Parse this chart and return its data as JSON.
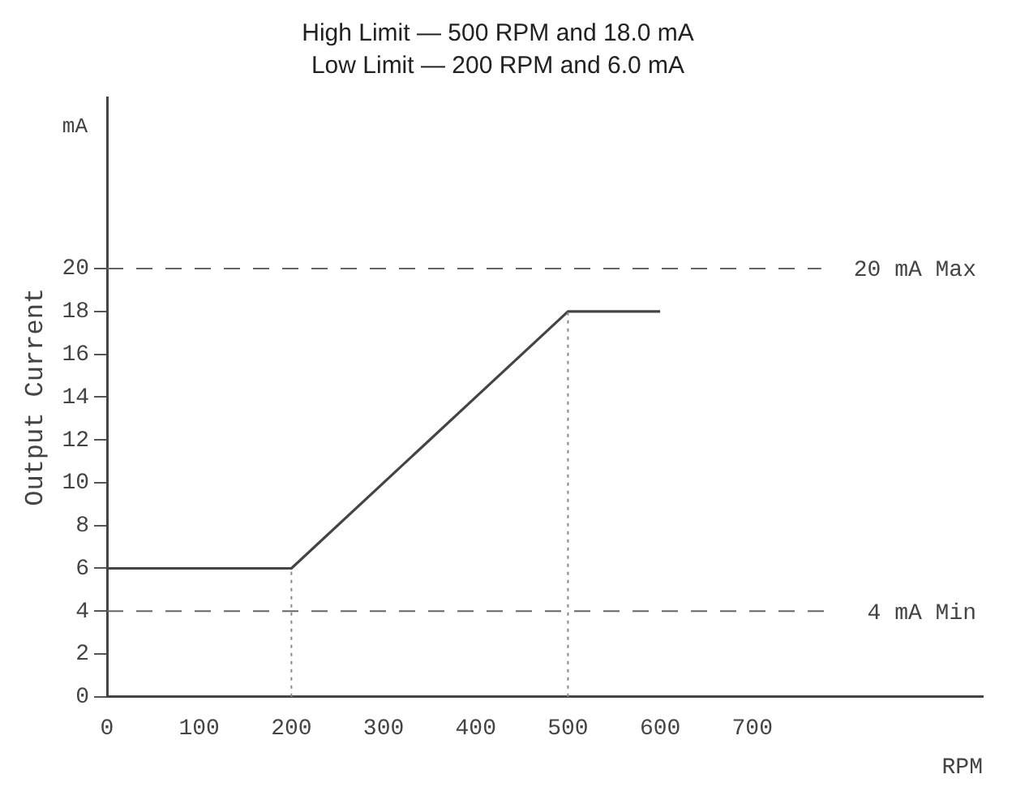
{
  "chart_data": {
    "type": "line",
    "title": "High Limit — 500 RPM and 18.0 mA",
    "subtitle": "Low Limit — 200 RPM and 6.0 mA",
    "xlabel": "RPM",
    "ylabel": "Output Current",
    "annotations": [
      "mA"
    ],
    "x": [
      0,
      200,
      500,
      600
    ],
    "series": [
      {
        "color": "#444444",
        "values": [
          6,
          6,
          18,
          18
        ]
      }
    ],
    "xlim": [
      0,
      950
    ],
    "xticks": [
      0,
      100,
      200,
      300,
      400,
      500,
      600,
      700
    ],
    "ylim": [
      0,
      28
    ],
    "yticks": [
      0,
      2,
      4,
      6,
      8,
      10,
      12,
      14,
      16,
      18,
      20
    ],
    "ref_lines": [
      {
        "axis": "y",
        "value": 20,
        "label": "20 mA Max",
        "line_style": "dashed",
        "color": "#666666"
      },
      {
        "axis": "y",
        "value": 4,
        "label": "4 mA Min",
        "line_style": "dashed",
        "color": "#666666"
      },
      {
        "axis": "x",
        "value": 200,
        "line_style": "dotted",
        "color": "#888888"
      },
      {
        "axis": "x",
        "value": 500,
        "line_style": "dotted",
        "color": "#888888"
      }
    ],
    "grid": false,
    "legend": false,
    "marker": "none",
    "line_style": "solid"
  }
}
